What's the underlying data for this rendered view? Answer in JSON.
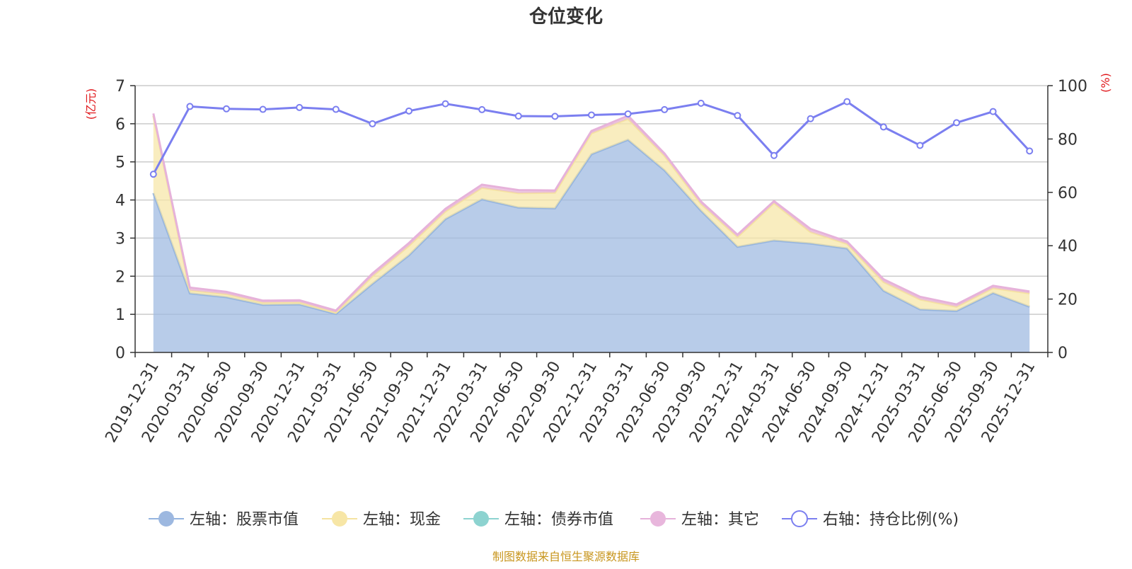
{
  "chart_data": {
    "type": "area",
    "title": "仓位变化",
    "left_axis": {
      "unit": "(亿元)",
      "ylim": [
        0,
        7
      ],
      "ticks": [
        0,
        1,
        2,
        3,
        4,
        5,
        6,
        7
      ]
    },
    "right_axis": {
      "unit": "(%)",
      "ylim": [
        0,
        100
      ],
      "ticks": [
        0,
        20,
        40,
        60,
        80,
        100
      ]
    },
    "categories": [
      "2019-12-31",
      "2020-03-31",
      "2020-06-30",
      "2020-09-30",
      "2020-12-31",
      "2021-03-31",
      "2021-06-30",
      "2021-09-30",
      "2021-12-31",
      "2022-03-31",
      "2022-06-30",
      "2022-09-30",
      "2022-12-31",
      "2023-03-31",
      "2023-06-30",
      "2023-09-30",
      "2023-12-31",
      "2024-03-31",
      "2024-06-30",
      "2024-09-30",
      "2024-12-31",
      "2025-03-31",
      "2025-06-30",
      "2025-09-30",
      "2025-12-31"
    ],
    "series": [
      {
        "name": "左轴：股票市值",
        "axis": "left",
        "type": "area",
        "color": "#9db8e0",
        "values": [
          4.18,
          1.55,
          1.45,
          1.25,
          1.26,
          1.01,
          1.8,
          2.55,
          3.5,
          4.02,
          3.8,
          3.78,
          5.2,
          5.58,
          4.78,
          3.72,
          2.77,
          2.94,
          2.86,
          2.73,
          1.62,
          1.13,
          1.09,
          1.56,
          1.2
        ]
      },
      {
        "name": "左轴：现金",
        "axis": "left",
        "type": "area",
        "color": "#f7e6a6",
        "values": [
          2.03,
          0.08,
          0.08,
          0.06,
          0.06,
          0.04,
          0.2,
          0.25,
          0.2,
          0.3,
          0.38,
          0.41,
          0.55,
          0.55,
          0.38,
          0.18,
          0.26,
          0.98,
          0.3,
          0.12,
          0.23,
          0.26,
          0.11,
          0.13,
          0.35
        ]
      },
      {
        "name": "左轴：债券市值",
        "axis": "left",
        "type": "area",
        "color": "#8dd3d0",
        "values": [
          0,
          0,
          0,
          0,
          0,
          0,
          0,
          0,
          0,
          0,
          0,
          0,
          0,
          0,
          0,
          0,
          0,
          0,
          0,
          0,
          0,
          0,
          0,
          0,
          0
        ]
      },
      {
        "name": "左轴：其它",
        "axis": "left",
        "type": "area",
        "color": "#e8b6dc",
        "values": [
          0.06,
          0.07,
          0.06,
          0.05,
          0.05,
          0.05,
          0.07,
          0.07,
          0.07,
          0.08,
          0.08,
          0.06,
          0.06,
          0.08,
          0.06,
          0.06,
          0.06,
          0.05,
          0.08,
          0.06,
          0.07,
          0.07,
          0.06,
          0.06,
          0.05
        ]
      },
      {
        "name": "右轴：持仓比例(%)",
        "axis": "right",
        "type": "line",
        "color": "#7b7ff0",
        "values": [
          66.8,
          92.2,
          91.3,
          91.1,
          91.8,
          91.1,
          85.7,
          90.5,
          93.2,
          91.0,
          88.6,
          88.5,
          89.0,
          89.4,
          91.0,
          93.4,
          88.8,
          73.8,
          87.6,
          94.0,
          84.5,
          77.6,
          86.1,
          90.3,
          75.5
        ]
      }
    ],
    "legend_position": "bottom",
    "grid": true
  },
  "source_note": "制图数据来自恒生聚源数据库"
}
